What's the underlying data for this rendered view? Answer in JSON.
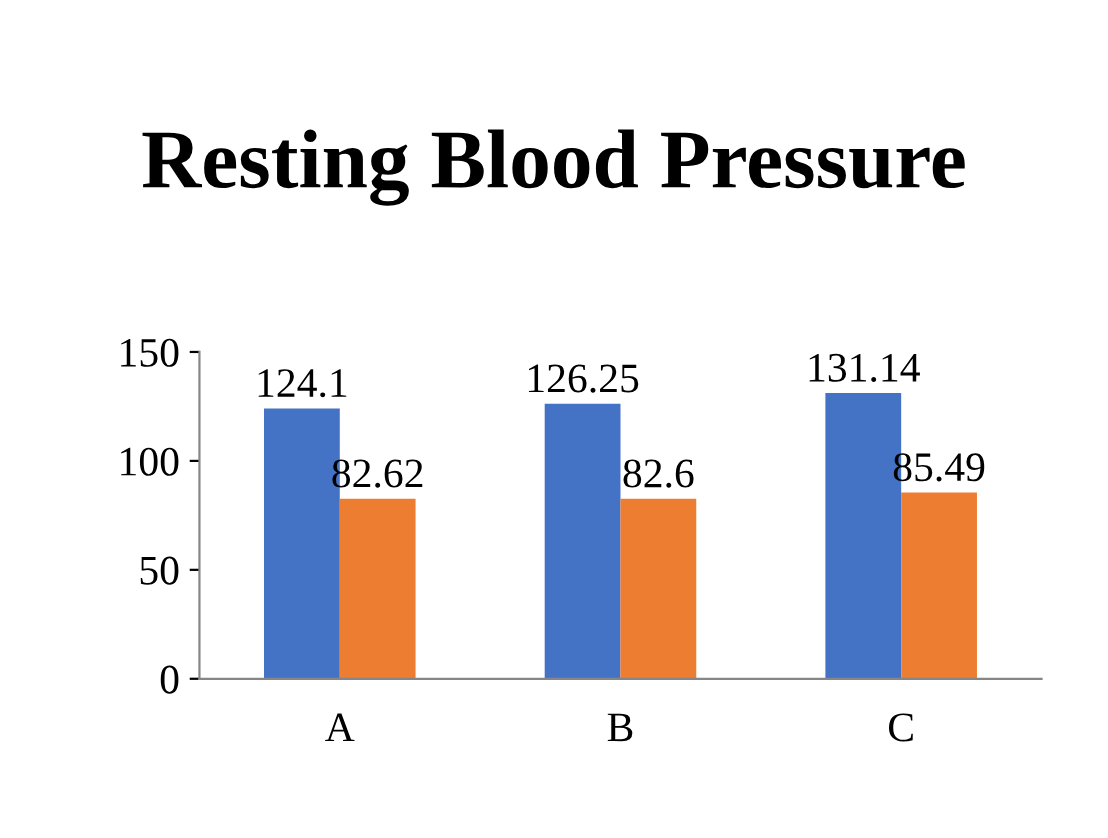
{
  "chart_data": {
    "type": "bar",
    "title": "Resting Blood Pressure",
    "categories": [
      "A",
      "B",
      "C"
    ],
    "series": [
      {
        "color": "#4472c4",
        "values": [
          124.1,
          126.25,
          131.14
        ]
      },
      {
        "color": "#ed7d31",
        "values": [
          82.62,
          82.6,
          85.49
        ]
      }
    ],
    "ylim": [
      0,
      150
    ],
    "yticks": [
      0,
      50,
      100,
      150
    ],
    "grid": false,
    "data_labels": true
  }
}
